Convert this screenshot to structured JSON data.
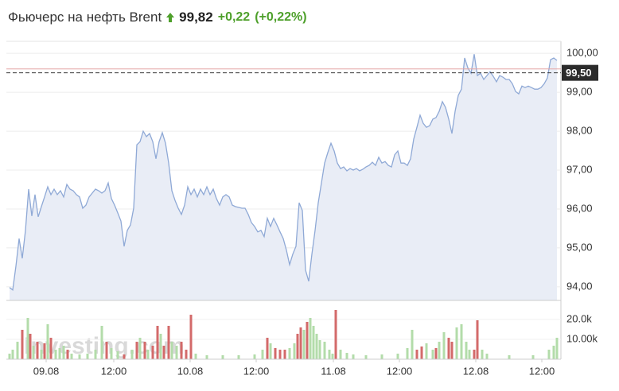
{
  "header": {
    "title": "Фьючерс на нефть Brent",
    "price": "99,82",
    "change": "+0,22",
    "change_pct": "(+0,22%)"
  },
  "watermark": "Investing.com",
  "chart_data": [
    {
      "type": "area",
      "color": "#8fa9d6",
      "fill": "#e9edf6",
      "values": [
        93.98,
        93.92,
        94.53,
        95.24,
        94.73,
        95.45,
        96.51,
        95.82,
        96.37,
        95.8,
        96.06,
        96.31,
        96.57,
        96.37,
        96.51,
        96.37,
        96.47,
        96.31,
        96.63,
        96.51,
        96.47,
        96.37,
        96.31,
        96.02,
        96.1,
        96.31,
        96.41,
        96.51,
        96.47,
        96.41,
        96.47,
        96.67,
        96.27,
        96.1,
        95.9,
        95.69,
        95.04,
        95.45,
        95.59,
        96.02,
        97.65,
        97.73,
        98.0,
        97.86,
        97.94,
        97.73,
        97.29,
        97.73,
        97.96,
        97.69,
        97.18,
        96.47,
        96.22,
        96.02,
        95.86,
        96.1,
        96.57,
        96.37,
        96.51,
        96.31,
        96.51,
        96.37,
        96.57,
        96.37,
        96.51,
        96.27,
        96.1,
        96.31,
        96.37,
        96.31,
        96.1,
        96.06,
        96.04,
        96.02,
        96.02,
        95.86,
        95.65,
        95.55,
        95.41,
        95.45,
        95.29,
        95.76,
        95.55,
        95.76,
        95.59,
        95.41,
        95.24,
        94.94,
        94.57,
        94.84,
        95.04,
        96.16,
        95.96,
        94.43,
        94.14,
        94.84,
        95.45,
        96.16,
        96.67,
        97.18,
        97.45,
        97.69,
        97.49,
        97.18,
        97.04,
        97.08,
        96.98,
        97.04,
        97.0,
        97.04,
        96.98,
        97.02,
        97.08,
        97.12,
        97.2,
        97.12,
        97.33,
        97.18,
        97.22,
        97.12,
        97.08,
        97.39,
        97.49,
        97.18,
        97.18,
        97.12,
        97.29,
        97.8,
        98.1,
        98.41,
        98.2,
        98.1,
        98.14,
        98.31,
        98.35,
        98.51,
        98.76,
        98.61,
        98.31,
        97.94,
        98.51,
        98.92,
        99.08,
        99.88,
        99.63,
        99.49,
        99.98,
        99.43,
        99.49,
        99.33,
        99.43,
        99.53,
        99.41,
        99.27,
        99.43,
        99.39,
        99.33,
        99.33,
        99.22,
        99.02,
        98.96,
        99.16,
        99.12,
        99.16,
        99.12,
        99.08,
        99.08,
        99.12,
        99.22,
        99.37,
        99.84,
        99.88,
        99.82
      ],
      "xlim": [
        0,
        172
      ],
      "ylim": [
        93.65,
        100.31
      ],
      "yticks": [
        {
          "value": 94,
          "label": "94,00"
        },
        {
          "value": 95,
          "label": "95,00"
        },
        {
          "value": 96,
          "label": "96,00"
        },
        {
          "value": 97,
          "label": "97,00"
        },
        {
          "value": 98,
          "label": "98,00"
        },
        {
          "value": 99,
          "label": "99,00"
        },
        {
          "value": 100,
          "label": "100,00"
        }
      ],
      "grid": true,
      "reference_line": {
        "value": 99.5,
        "label": "99,50"
      },
      "prev_close": 99.6
    },
    {
      "type": "bar",
      "x": [
        0,
        1,
        2.5,
        4,
        5.75,
        6.5,
        7.5,
        8.75,
        10,
        11,
        12,
        13,
        14.5,
        15.75,
        17,
        18.25,
        19.5,
        22,
        24.5,
        27,
        29,
        30.5,
        32,
        34,
        36,
        38.5,
        40,
        41,
        42.5,
        43.5,
        45,
        46.5,
        47.5,
        48.5,
        50,
        51,
        52.5,
        54,
        55.5,
        57,
        58.5,
        62,
        67,
        72,
        77,
        79.5,
        81,
        82,
        83.5,
        85,
        86.5,
        88,
        89.5,
        90.5,
        91.5,
        92.5,
        93.5,
        94.5,
        95.5,
        96.5,
        97.5,
        99,
        100.5,
        101.5,
        102.5,
        104,
        106,
        108,
        112,
        117,
        122,
        125,
        126.5,
        128,
        129.5,
        131,
        133,
        134,
        135,
        136.5,
        138,
        139,
        140.5,
        142,
        143.5,
        144.5,
        146,
        147,
        148.5,
        150,
        157,
        164.5,
        169.5,
        171,
        172
      ],
      "values": [
        2800,
        4800,
        8800,
        14800,
        20800,
        12800,
        6800,
        8800,
        4800,
        8000,
        17600,
        10800,
        4800,
        5600,
        6800,
        4800,
        2800,
        2400,
        2800,
        4800,
        16800,
        8800,
        5600,
        4000,
        2400,
        4800,
        8800,
        10800,
        8800,
        4800,
        6800,
        16800,
        12800,
        6800,
        16800,
        8800,
        6800,
        8800,
        4800,
        22400,
        2800,
        2000,
        2000,
        2000,
        2400,
        4800,
        10800,
        8000,
        5600,
        4800,
        4800,
        5600,
        8000,
        12800,
        16000,
        14800,
        18800,
        20800,
        16800,
        12800,
        9600,
        8800,
        4800,
        2800,
        24800,
        4800,
        3200,
        2400,
        2000,
        2400,
        2800,
        5600,
        14800,
        4800,
        6400,
        8000,
        4800,
        5600,
        8800,
        13600,
        10800,
        8800,
        16000,
        17600,
        8800,
        4800,
        4800,
        19600,
        4800,
        2800,
        2000,
        2000,
        4800,
        6800,
        10800
      ],
      "colors": [
        "#b3dcaa",
        "#b3dcaa",
        "#b3dcaa",
        "#d36a6a",
        "#b3dcaa",
        "#d36a6a",
        "#b3dcaa",
        "#d36a6a",
        "#b3dcaa",
        "#d36a6a",
        "#b3dcaa",
        "#d36a6a",
        "#b3dcaa",
        "#b3dcaa",
        "#b3dcaa",
        "#d36a6a",
        "#b3dcaa",
        "#b3dcaa",
        "#b3dcaa",
        "#b3dcaa",
        "#b3dcaa",
        "#d36a6a",
        "#b3dcaa",
        "#b3dcaa",
        "#d36a6a",
        "#b3dcaa",
        "#d36a6a",
        "#b3dcaa",
        "#d36a6a",
        "#b3dcaa",
        "#d36a6a",
        "#d36a6a",
        "#b3dcaa",
        "#d36a6a",
        "#d36a6a",
        "#b3dcaa",
        "#b3dcaa",
        "#d36a6a",
        "#d36a6a",
        "#d36a6a",
        "#b3dcaa",
        "#b3dcaa",
        "#b3dcaa",
        "#b3dcaa",
        "#b3dcaa",
        "#b3dcaa",
        "#d36a6a",
        "#b3dcaa",
        "#d36a6a",
        "#d36a6a",
        "#d36a6a",
        "#b3dcaa",
        "#b3dcaa",
        "#d36a6a",
        "#d36a6a",
        "#b3dcaa",
        "#d36a6a",
        "#b3dcaa",
        "#b3dcaa",
        "#b3dcaa",
        "#b3dcaa",
        "#b3dcaa",
        "#b3dcaa",
        "#b3dcaa",
        "#d36a6a",
        "#b3dcaa",
        "#b3dcaa",
        "#b3dcaa",
        "#b3dcaa",
        "#b3dcaa",
        "#b3dcaa",
        "#b3dcaa",
        "#b3dcaa",
        "#d36a6a",
        "#d36a6a",
        "#b3dcaa",
        "#b3dcaa",
        "#d36a6a",
        "#b3dcaa",
        "#b3dcaa",
        "#d36a6a",
        "#d36a6a",
        "#b3dcaa",
        "#b3dcaa",
        "#b3dcaa",
        "#b3dcaa",
        "#d36a6a",
        "#d36a6a",
        "#b3dcaa",
        "#b3dcaa",
        "#b3dcaa",
        "#b3dcaa",
        "#b3dcaa",
        "#b3dcaa",
        "#b3dcaa"
      ],
      "xlim": [
        0,
        172
      ],
      "ylim": [
        0,
        26800
      ],
      "yticks": [
        {
          "value": 10000,
          "label": "10.00k"
        },
        {
          "value": 20000,
          "label": "20.0k"
        }
      ],
      "xticks": [
        {
          "value": 11.5,
          "label": "09.08"
        },
        {
          "value": 32.75,
          "label": "12:00"
        },
        {
          "value": 56.75,
          "label": "10.08"
        },
        {
          "value": 77.5,
          "label": "12:00"
        },
        {
          "value": 101.75,
          "label": "11.08"
        },
        {
          "value": 122.5,
          "label": "12:00"
        },
        {
          "value": 146.5,
          "label": "12.08"
        },
        {
          "value": 167.25,
          "label": "12:00"
        }
      ]
    }
  ]
}
